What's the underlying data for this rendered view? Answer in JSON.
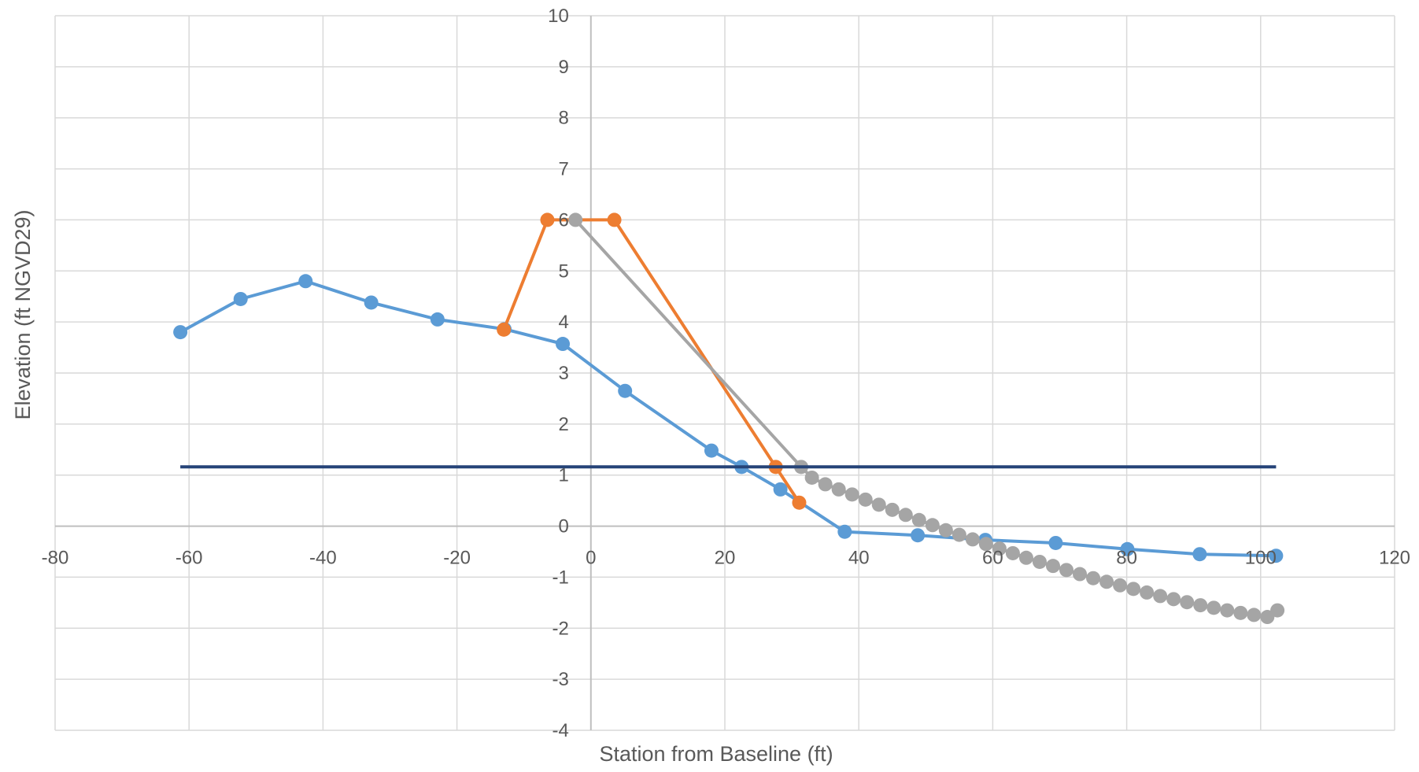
{
  "chart_data": {
    "type": "scatter",
    "title": "",
    "xlabel": "Station from Baseline (ft)",
    "ylabel": "Elevation (ft NGVD29)",
    "xlim": [
      -80,
      120
    ],
    "ylim": [
      -4,
      10
    ],
    "x_ticks": [
      -80,
      -60,
      -40,
      -20,
      0,
      20,
      40,
      60,
      80,
      100,
      120
    ],
    "y_ticks": [
      -4,
      -3,
      -2,
      -1,
      0,
      1,
      2,
      3,
      4,
      5,
      6,
      7,
      8,
      9,
      10
    ],
    "grid": true,
    "legend": "none",
    "series": [
      {
        "color": "#5b9bd5",
        "markers": true,
        "points": [
          [
            -61.3,
            3.8
          ],
          [
            -52.3,
            4.45
          ],
          [
            -42.6,
            4.8
          ],
          [
            -32.8,
            4.38
          ],
          [
            -22.9,
            4.05
          ],
          [
            -12.9,
            3.86
          ],
          [
            -4.2,
            3.57
          ],
          [
            5.1,
            2.65
          ],
          [
            18.0,
            1.48
          ],
          [
            22.5,
            1.16
          ],
          [
            28.3,
            0.72
          ],
          [
            37.9,
            -0.11
          ],
          [
            48.8,
            -0.18
          ],
          [
            58.9,
            -0.27
          ],
          [
            69.4,
            -0.33
          ],
          [
            80.1,
            -0.45
          ],
          [
            90.9,
            -0.55
          ],
          [
            102.3,
            -0.58
          ]
        ]
      },
      {
        "color": "#ed7d31",
        "markers": true,
        "points": [
          [
            -13.0,
            3.85
          ],
          [
            -6.5,
            6.0
          ],
          [
            3.5,
            6.0
          ],
          [
            27.6,
            1.16
          ],
          [
            31.1,
            0.46
          ]
        ]
      },
      {
        "color": "#a5a5a5",
        "markers": true,
        "points": [
          [
            -2.3,
            6.0
          ],
          [
            31.4,
            1.16
          ],
          [
            33.0,
            0.95
          ],
          [
            35.0,
            0.82
          ],
          [
            37.0,
            0.72
          ],
          [
            39.0,
            0.62
          ],
          [
            41.0,
            0.52
          ],
          [
            43.0,
            0.42
          ],
          [
            45.0,
            0.32
          ],
          [
            47.0,
            0.22
          ],
          [
            49.0,
            0.12
          ],
          [
            51.0,
            0.02
          ],
          [
            53.0,
            -0.08
          ],
          [
            55.0,
            -0.17
          ],
          [
            57.0,
            -0.26
          ],
          [
            59.0,
            -0.35
          ],
          [
            61.0,
            -0.44
          ],
          [
            63.0,
            -0.53
          ],
          [
            65.0,
            -0.62
          ],
          [
            67.0,
            -0.7
          ],
          [
            69.0,
            -0.78
          ],
          [
            71.0,
            -0.86
          ],
          [
            73.0,
            -0.94
          ],
          [
            75.0,
            -1.02
          ],
          [
            77.0,
            -1.09
          ],
          [
            79.0,
            -1.16
          ],
          [
            81.0,
            -1.23
          ],
          [
            83.0,
            -1.3
          ],
          [
            85.0,
            -1.37
          ],
          [
            87.0,
            -1.43
          ],
          [
            89.0,
            -1.49
          ],
          [
            91.0,
            -1.55
          ],
          [
            93.0,
            -1.6
          ],
          [
            95.0,
            -1.65
          ],
          [
            97.0,
            -1.7
          ],
          [
            99.0,
            -1.74
          ],
          [
            101.0,
            -1.78
          ],
          [
            102.5,
            -1.65
          ]
        ]
      },
      {
        "color": "#264478",
        "markers": false,
        "points": [
          [
            -61.3,
            1.16
          ],
          [
            102.3,
            1.16
          ]
        ]
      }
    ]
  }
}
